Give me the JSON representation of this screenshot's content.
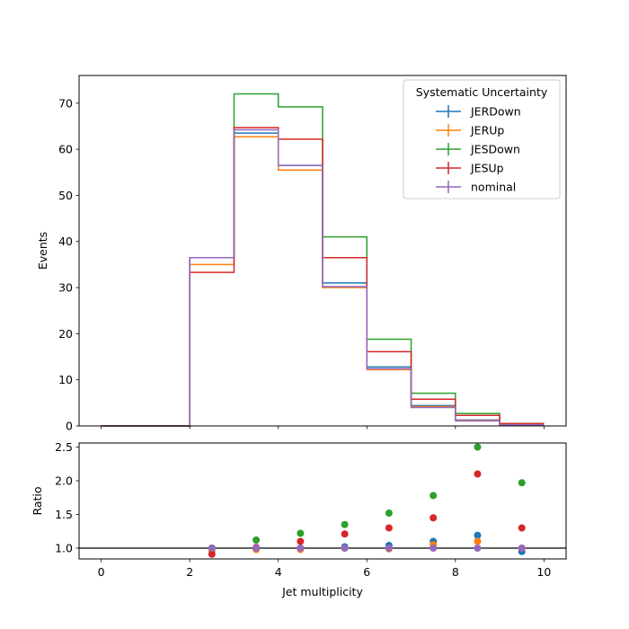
{
  "chart_data": [
    {
      "type": "step",
      "panel": "main",
      "ylabel": "Events",
      "xlabel": "",
      "xlim": [
        -0.5,
        10.5
      ],
      "ylim": [
        0,
        76
      ],
      "bin_edges": [
        0,
        1,
        2,
        3,
        4,
        5,
        6,
        7,
        8,
        9,
        10
      ],
      "xticks": [
        0,
        2,
        4,
        6,
        8,
        10
      ],
      "yticks": [
        0,
        10,
        20,
        30,
        40,
        50,
        60,
        70
      ],
      "legend": {
        "title": "Systematic Uncertainty",
        "placement": "upper-right"
      },
      "series": [
        {
          "name": "JERDown",
          "color": "#1f77b4",
          "values": [
            0,
            0,
            36.5,
            63.5,
            56.5,
            31,
            12.8,
            4.4,
            1.3,
            0.3
          ]
        },
        {
          "name": "JERUp",
          "color": "#ff7f0e",
          "values": [
            0,
            0,
            35,
            62.7,
            55.5,
            30,
            12.2,
            4.2,
            1.2,
            0.3
          ]
        },
        {
          "name": "JESDown",
          "color": "#2ca02c",
          "values": [
            0,
            0,
            36.5,
            72,
            69.2,
            41,
            18.8,
            7.1,
            2.7,
            0.5
          ]
        },
        {
          "name": "JESUp",
          "color": "#d62728",
          "values": [
            0,
            0,
            33.3,
            64.7,
            62.2,
            36.5,
            16.1,
            5.8,
            2.3,
            0.5
          ]
        },
        {
          "name": "nominal",
          "color": "#9467bd",
          "values": [
            0,
            0,
            36.5,
            64.2,
            56.5,
            30.2,
            12.4,
            4.0,
            1.1,
            0.25
          ]
        }
      ]
    },
    {
      "type": "scatter",
      "panel": "ratio",
      "xlabel": "Jet multiplicity",
      "ylabel": "Ratio",
      "xlim": [
        -0.5,
        10.5
      ],
      "ylim": [
        0.84,
        2.56
      ],
      "xticks": [
        0,
        2,
        4,
        6,
        8,
        10
      ],
      "yticks": [
        1.0,
        1.5,
        2.0,
        2.5
      ],
      "reference_line": 1.0,
      "x": [
        2.5,
        3.5,
        4.5,
        5.5,
        6.5,
        7.5,
        8.5,
        9.5
      ],
      "series": [
        {
          "name": "JERDown",
          "color": "#1f77b4",
          "values": [
            1.0,
            0.99,
            1.0,
            1.02,
            1.04,
            1.1,
            1.19,
            0.95
          ]
        },
        {
          "name": "JERUp",
          "color": "#ff7f0e",
          "values": [
            0.96,
            0.98,
            0.98,
            1.0,
            0.99,
            1.05,
            1.1,
            1.0
          ]
        },
        {
          "name": "JESDown",
          "color": "#2ca02c",
          "values": [
            1.0,
            1.12,
            1.22,
            1.35,
            1.52,
            1.78,
            2.5,
            1.97
          ]
        },
        {
          "name": "JESUp",
          "color": "#d62728",
          "values": [
            0.91,
            1.01,
            1.1,
            1.21,
            1.3,
            1.45,
            2.1,
            1.3
          ]
        },
        {
          "name": "nominal",
          "color": "#9467bd",
          "values": [
            1.0,
            1.0,
            1.0,
            1.0,
            1.0,
            1.0,
            1.0,
            1.0
          ]
        }
      ]
    }
  ]
}
